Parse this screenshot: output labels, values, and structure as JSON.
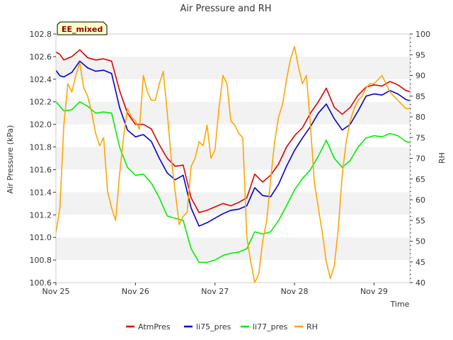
{
  "chart_data": {
    "type": "line",
    "title": "Air Pressure and RH",
    "xlabel": "Time",
    "ylabel": "Air Pressure (kPa)",
    "y2label": "RH",
    "badge": "EE_mixed",
    "x_ticks": [
      "Nov 25",
      "Nov 26",
      "Nov 27",
      "Nov 28",
      "Nov 29"
    ],
    "xlim": [
      0,
      4.45
    ],
    "ylim": [
      100.6,
      102.8
    ],
    "y_ticks": [
      "100.6",
      "100.8",
      "101.0",
      "101.2",
      "101.4",
      "101.6",
      "101.8",
      "102.0",
      "102.2",
      "102.4",
      "102.6",
      "102.8"
    ],
    "y2lim": [
      40,
      100
    ],
    "y2_ticks": [
      "40",
      "45",
      "50",
      "55",
      "60",
      "65",
      "70",
      "75",
      "80",
      "85",
      "90",
      "95",
      "100"
    ],
    "grid": "horizontal bands",
    "legend_position": "bottom",
    "series": [
      {
        "name": "AtmPres",
        "color": "#e00000",
        "axis": "left",
        "x": [
          0,
          0.05,
          0.1,
          0.2,
          0.3,
          0.4,
          0.5,
          0.6,
          0.7,
          0.8,
          0.9,
          1.0,
          1.1,
          1.2,
          1.3,
          1.4,
          1.5,
          1.6,
          1.7,
          1.8,
          1.9,
          2.0,
          2.1,
          2.2,
          2.3,
          2.4,
          2.5,
          2.6,
          2.7,
          2.8,
          2.9,
          3.0,
          3.1,
          3.2,
          3.3,
          3.4,
          3.5,
          3.6,
          3.7,
          3.8,
          3.9,
          4.0,
          4.1,
          4.2,
          4.3,
          4.4,
          4.45
        ],
        "values": [
          102.64,
          102.62,
          102.57,
          102.6,
          102.66,
          102.59,
          102.57,
          102.58,
          102.56,
          102.3,
          102.1,
          102.0,
          102.0,
          101.96,
          101.82,
          101.7,
          101.63,
          101.64,
          101.35,
          101.22,
          101.24,
          101.27,
          101.3,
          101.28,
          101.31,
          101.35,
          101.56,
          101.49,
          101.55,
          101.65,
          101.8,
          101.9,
          101.97,
          102.1,
          102.2,
          102.32,
          102.15,
          102.09,
          102.15,
          102.26,
          102.33,
          102.35,
          102.34,
          102.38,
          102.35,
          102.3,
          102.29
        ]
      },
      {
        "name": "li75_pres",
        "color": "#0000cc",
        "axis": "left",
        "x": [
          0,
          0.05,
          0.1,
          0.2,
          0.3,
          0.4,
          0.5,
          0.6,
          0.7,
          0.8,
          0.9,
          1.0,
          1.1,
          1.2,
          1.3,
          1.4,
          1.5,
          1.6,
          1.7,
          1.8,
          1.9,
          2.0,
          2.1,
          2.2,
          2.3,
          2.4,
          2.5,
          2.6,
          2.7,
          2.8,
          2.9,
          3.0,
          3.1,
          3.2,
          3.3,
          3.4,
          3.5,
          3.6,
          3.7,
          3.8,
          3.9,
          4.0,
          4.1,
          4.2,
          4.3,
          4.4,
          4.45
        ],
        "values": [
          102.48,
          102.43,
          102.42,
          102.46,
          102.56,
          102.5,
          102.47,
          102.48,
          102.45,
          102.15,
          101.95,
          101.89,
          101.91,
          101.85,
          101.7,
          101.57,
          101.51,
          101.55,
          101.26,
          101.1,
          101.13,
          101.17,
          101.21,
          101.24,
          101.25,
          101.28,
          101.44,
          101.37,
          101.36,
          101.47,
          101.63,
          101.77,
          101.88,
          101.98,
          102.1,
          102.18,
          102.05,
          101.95,
          102.0,
          102.12,
          102.25,
          102.27,
          102.26,
          102.3,
          102.27,
          102.22,
          102.21
        ]
      },
      {
        "name": "li77_pres",
        "color": "#00ee00",
        "axis": "left",
        "x": [
          0,
          0.05,
          0.1,
          0.2,
          0.3,
          0.4,
          0.5,
          0.6,
          0.7,
          0.8,
          0.9,
          1.0,
          1.1,
          1.2,
          1.3,
          1.4,
          1.5,
          1.6,
          1.7,
          1.8,
          1.9,
          2.0,
          2.1,
          2.2,
          2.3,
          2.4,
          2.5,
          2.6,
          2.7,
          2.8,
          2.9,
          3.0,
          3.1,
          3.2,
          3.3,
          3.4,
          3.5,
          3.6,
          3.7,
          3.8,
          3.9,
          4.0,
          4.1,
          4.2,
          4.3,
          4.4,
          4.45
        ],
        "values": [
          102.2,
          102.16,
          102.12,
          102.13,
          102.2,
          102.16,
          102.1,
          102.11,
          102.1,
          101.8,
          101.62,
          101.55,
          101.56,
          101.48,
          101.35,
          101.19,
          101.17,
          101.15,
          100.9,
          100.78,
          100.78,
          100.8,
          100.84,
          100.86,
          100.87,
          100.9,
          101.05,
          101.03,
          101.05,
          101.15,
          101.28,
          101.42,
          101.52,
          101.6,
          101.72,
          101.86,
          101.7,
          101.62,
          101.68,
          101.8,
          101.88,
          101.9,
          101.89,
          101.92,
          101.9,
          101.85,
          101.84
        ]
      },
      {
        "name": "RH",
        "color": "#ffa500",
        "axis": "right",
        "x": [
          0,
          0.05,
          0.1,
          0.15,
          0.2,
          0.25,
          0.3,
          0.35,
          0.4,
          0.45,
          0.5,
          0.55,
          0.6,
          0.65,
          0.7,
          0.75,
          0.8,
          0.85,
          0.9,
          0.95,
          1.0,
          1.05,
          1.1,
          1.15,
          1.2,
          1.25,
          1.3,
          1.35,
          1.4,
          1.45,
          1.5,
          1.55,
          1.6,
          1.65,
          1.7,
          1.75,
          1.8,
          1.85,
          1.9,
          1.95,
          2.0,
          2.05,
          2.1,
          2.15,
          2.2,
          2.25,
          2.3,
          2.35,
          2.4,
          2.45,
          2.5,
          2.55,
          2.6,
          2.65,
          2.7,
          2.75,
          2.8,
          2.85,
          2.9,
          2.95,
          3.0,
          3.05,
          3.1,
          3.15,
          3.2,
          3.25,
          3.3,
          3.35,
          3.4,
          3.45,
          3.5,
          3.55,
          3.6,
          3.65,
          3.7,
          3.75,
          3.8,
          3.85,
          3.9,
          3.95,
          4.0,
          4.05,
          4.1,
          4.15,
          4.2,
          4.25,
          4.3,
          4.35,
          4.4,
          4.45
        ],
        "values": [
          52,
          58,
          78,
          88,
          86,
          90,
          93,
          87,
          85,
          81,
          76,
          73,
          75,
          62,
          58,
          55,
          66,
          75,
          82,
          80,
          79,
          77,
          90,
          86,
          84,
          84,
          88,
          91,
          81,
          70,
          62,
          54,
          56,
          57,
          68,
          70,
          74,
          73,
          78,
          70,
          72,
          82,
          90,
          88,
          79,
          78,
          76,
          75,
          51,
          45,
          40,
          42,
          50,
          55,
          65,
          74,
          80,
          83,
          89,
          94,
          97,
          92,
          88,
          90,
          78,
          64,
          58,
          52,
          45,
          41,
          44,
          53,
          66,
          74,
          79,
          82,
          84,
          85,
          87,
          88,
          88,
          89,
          90,
          88,
          86,
          85,
          84,
          83,
          82,
          82
        ]
      }
    ]
  }
}
